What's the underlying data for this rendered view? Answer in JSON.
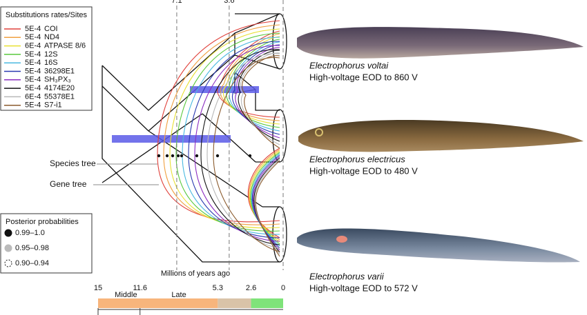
{
  "legend": {
    "title": "Substitutions rates/Sites",
    "items": [
      {
        "rate": "5E-4",
        "site": "COI",
        "color": "#e0413b"
      },
      {
        "rate": "5E-4",
        "site": "ND4",
        "color": "#f0a040"
      },
      {
        "rate": "6E-4",
        "site": "ATPASE 8/6",
        "color": "#e8e030"
      },
      {
        "rate": "5E-4",
        "site": "12S",
        "color": "#58c83c"
      },
      {
        "rate": "5E-4",
        "site": "16S",
        "color": "#48b8e0"
      },
      {
        "rate": "5E-4",
        "site": "36298E1",
        "color": "#2838b0"
      },
      {
        "rate": "5E-4",
        "site": "SH₃PX₃",
        "color": "#8a2cc0"
      },
      {
        "rate": "5E-4",
        "site": "4174E20",
        "color": "#111111"
      },
      {
        "rate": "6E-4",
        "site": "55378E1",
        "color": "#b8b8b8"
      },
      {
        "rate": "5E-4",
        "site": "S7-i1",
        "color": "#8a5a2c"
      }
    ]
  },
  "posterior": {
    "title": "Posterior probabilities",
    "items": [
      "0.99–1.0",
      "0.95–0.98",
      "0.90–0.94"
    ]
  },
  "tree": {
    "species_label": "Species tree",
    "gene_label": "Gene tree",
    "top_ticks": [
      7.1,
      3.6
    ]
  },
  "timescale": {
    "axis_label": "Millions of years ago",
    "ticks": [
      15,
      11.6,
      5.3,
      2.6,
      0
    ],
    "epochs": [
      "Middle",
      "Late"
    ]
  },
  "species": [
    {
      "name": "Electrophorus voltai",
      "eod": "High-voltage EOD to 860 V"
    },
    {
      "name": "Electrophorus electricus",
      "eod": "High-voltage EOD to 480 V"
    },
    {
      "name": "Electrophorus varii",
      "eod": "High-voltage EOD to 572 V"
    }
  ]
}
